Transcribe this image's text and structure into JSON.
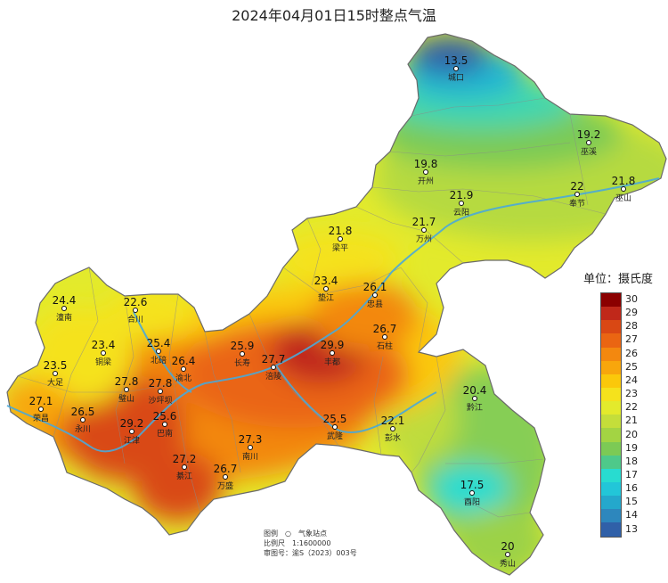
{
  "title": "2024年04月01日15时整点气温",
  "legend": {
    "unit_label": "单位：摄氏度",
    "levels": [
      {
        "value": "30",
        "color": "#8b0000"
      },
      {
        "value": "29",
        "color": "#c0281a"
      },
      {
        "value": "28",
        "color": "#d94814"
      },
      {
        "value": "27",
        "color": "#ea6512"
      },
      {
        "value": "26",
        "color": "#f3880f"
      },
      {
        "value": "25",
        "color": "#f8a60c"
      },
      {
        "value": "24",
        "color": "#fbc80a"
      },
      {
        "value": "23",
        "color": "#f5e21c"
      },
      {
        "value": "22",
        "color": "#e3ea2c"
      },
      {
        "value": "21",
        "color": "#c4de3a"
      },
      {
        "value": "20",
        "color": "#a3d443"
      },
      {
        "value": "19",
        "color": "#7cca55"
      },
      {
        "value": "18",
        "color": "#4ec98a"
      },
      {
        "value": "17",
        "color": "#28dcd0"
      },
      {
        "value": "16",
        "color": "#22c6d8"
      },
      {
        "value": "15",
        "color": "#24a8cc"
      },
      {
        "value": "14",
        "color": "#2d87bd"
      },
      {
        "value": "13",
        "color": "#3060a8"
      }
    ]
  },
  "info": {
    "legend_label": "图例",
    "station_label": "气象站点",
    "scale_label": "比例尺",
    "scale_value": "1:1600000",
    "approval_label": "审图号：",
    "approval_value": "渝S（2023）003号"
  },
  "stations": [
    {
      "name": "城口",
      "temp": "13.5"
    },
    {
      "name": "巫溪",
      "temp": "19.2"
    },
    {
      "name": "开州",
      "temp": "19.8"
    },
    {
      "name": "云阳",
      "temp": "21.9"
    },
    {
      "name": "奉节",
      "temp": "22"
    },
    {
      "name": "巫山",
      "temp": "21.8"
    },
    {
      "name": "万州",
      "temp": "21.7"
    },
    {
      "name": "梁平",
      "temp": "21.8"
    },
    {
      "name": "垫江",
      "temp": "23.4"
    },
    {
      "name": "忠县",
      "temp": "26.1"
    },
    {
      "name": "石柱",
      "temp": "26.7"
    },
    {
      "name": "丰都",
      "temp": "29.9"
    },
    {
      "name": "潼南",
      "temp": "24.4"
    },
    {
      "name": "合川",
      "temp": "22.6"
    },
    {
      "name": "铜梁",
      "temp": "23.4"
    },
    {
      "name": "北碚",
      "temp": "25.4"
    },
    {
      "name": "渝北",
      "temp": "26.4"
    },
    {
      "name": "长寿",
      "temp": "25.9"
    },
    {
      "name": "涪陵",
      "temp": "27.7"
    },
    {
      "name": "大足",
      "temp": "23.5"
    },
    {
      "name": "璧山",
      "temp": "27.8"
    },
    {
      "name": "沙坪坝",
      "temp": "27.8"
    },
    {
      "name": "荣昌",
      "temp": "27.1"
    },
    {
      "name": "永川",
      "temp": "26.5"
    },
    {
      "name": "江津",
      "temp": "29.2"
    },
    {
      "name": "巴南",
      "temp": "25.6"
    },
    {
      "name": "南川",
      "temp": "27.3"
    },
    {
      "name": "武隆",
      "temp": "25.5"
    },
    {
      "name": "彭水",
      "temp": "22.1"
    },
    {
      "name": "黔江",
      "temp": "20.4"
    },
    {
      "name": "綦江",
      "temp": "27.2"
    },
    {
      "name": "万盛",
      "temp": "26.7"
    },
    {
      "name": "酉阳",
      "temp": "17.5"
    },
    {
      "name": "秀山",
      "temp": "20"
    }
  ]
}
